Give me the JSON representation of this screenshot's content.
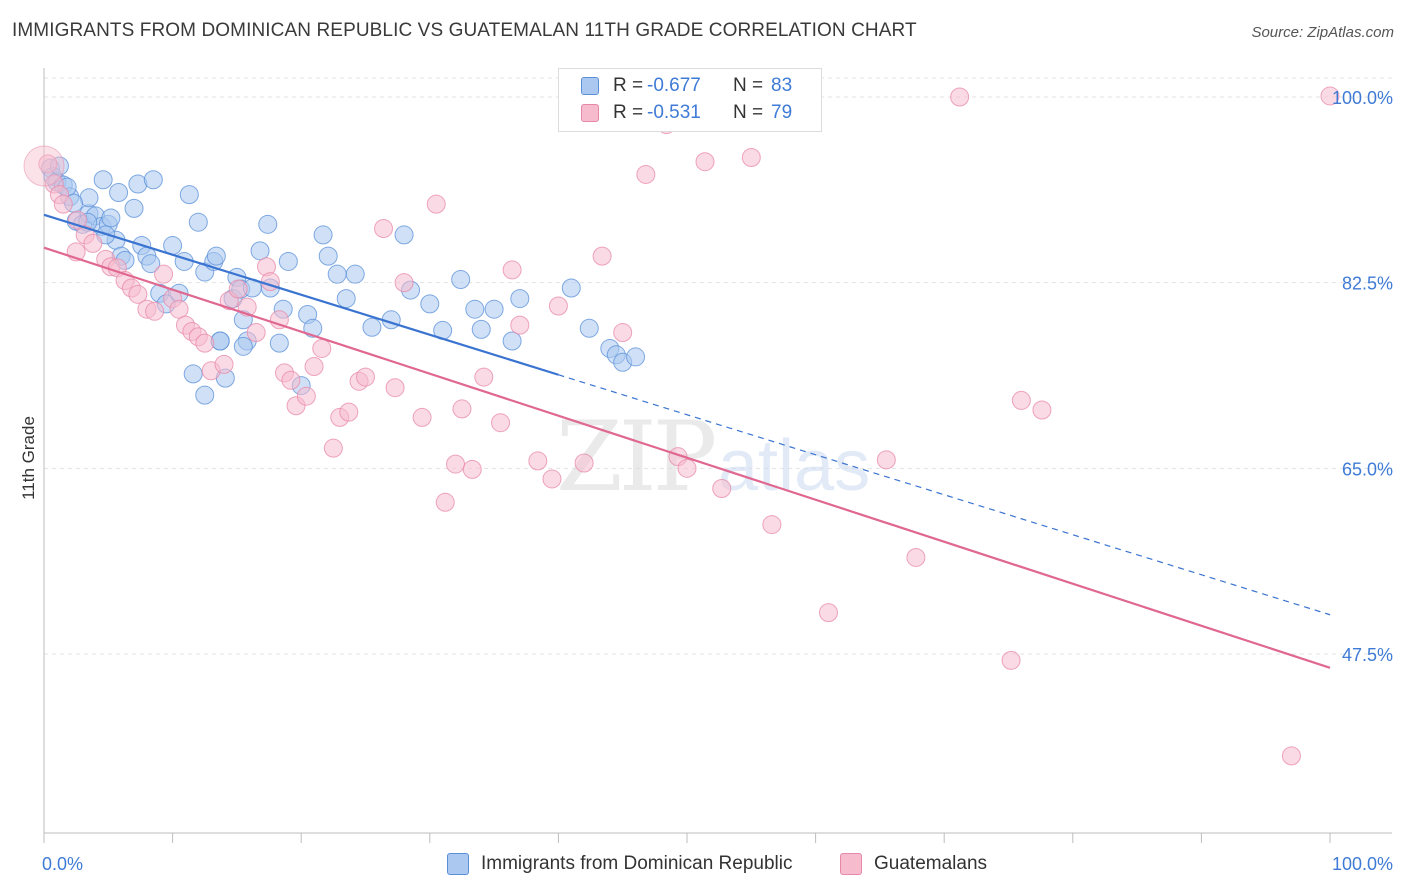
{
  "header": {
    "title": "IMMIGRANTS FROM DOMINICAN REPUBLIC VS GUATEMALAN 11TH GRADE CORRELATION CHART",
    "source": "Source: ZipAtlas.com"
  },
  "legend": {
    "rows": [
      {
        "r_label": "R =",
        "r_value": "-0.677",
        "n_label": "N =",
        "n_value": "83"
      },
      {
        "r_label": "R =",
        "r_value": "-0.531",
        "n_label": "N =",
        "n_value": "79"
      }
    ]
  },
  "bottom_legend": {
    "items": [
      {
        "label": "Immigrants from Dominican Republic"
      },
      {
        "label": "Guatemalans"
      }
    ]
  },
  "colors": {
    "series1_fill": "#aac8f0",
    "series1_stroke": "#5a8fd8",
    "series1_line": "#3a74d0",
    "series2_fill": "#f6bccd",
    "series2_stroke": "#e888a8",
    "series2_line": "#e06890",
    "axis_label": "#3f7bd6",
    "grid": "#e3e3e3",
    "watermark": "#d8d8d8"
  },
  "chart_data": {
    "type": "scatter",
    "title": "IMMIGRANTS FROM DOMINICAN REPUBLIC VS GUATEMALAN 11TH GRADE CORRELATION CHART",
    "xlabel": "",
    "ylabel": "11th Grade",
    "xlim": [
      0,
      100
    ],
    "ylim": [
      30.5,
      102.5
    ],
    "x_tick_labels": [
      "0.0%",
      "100.0%"
    ],
    "y_ticks": [
      47.5,
      65.0,
      82.5,
      100.0
    ],
    "y_tick_labels": [
      "47.5%",
      "65.0%",
      "82.5%",
      "100.0%"
    ],
    "grid": true,
    "watermark": {
      "bold": "ZIP",
      "light": "atlas"
    },
    "series": [
      {
        "name": "Immigrants from Dominican Republic",
        "R": -0.677,
        "N": 83,
        "trend": {
          "x0": 0,
          "y0": 88.9,
          "x1": 100,
          "y1": 51.2,
          "solid_until": 40
        },
        "points": [
          [
            0.5,
            93.3
          ],
          [
            0.7,
            92.5
          ],
          [
            1,
            92.0
          ],
          [
            1.5,
            91.7
          ],
          [
            2,
            90.6
          ],
          [
            2.5,
            88.3
          ],
          [
            3,
            88.0
          ],
          [
            3.5,
            89.0
          ],
          [
            4,
            88.8
          ],
          [
            4.5,
            87.8
          ],
          [
            5,
            88.0
          ],
          [
            3.5,
            90.5
          ],
          [
            4.6,
            92.2
          ],
          [
            5.2,
            88.6
          ],
          [
            5.6,
            86.5
          ],
          [
            6,
            85.0
          ],
          [
            6.3,
            84.6
          ],
          [
            7,
            89.5
          ],
          [
            7.3,
            91.8
          ],
          [
            7.6,
            86.0
          ],
          [
            8,
            85.0
          ],
          [
            8.3,
            84.3
          ],
          [
            9,
            81.5
          ],
          [
            9.5,
            80.5
          ],
          [
            10,
            86.0
          ],
          [
            10.5,
            81.5
          ],
          [
            10.9,
            84.5
          ],
          [
            11.3,
            90.8
          ],
          [
            12,
            88.2
          ],
          [
            12.5,
            83.5
          ],
          [
            13.2,
            84.5
          ],
          [
            13.7,
            77.0
          ],
          [
            14.1,
            73.5
          ],
          [
            14.7,
            81.0
          ],
          [
            15,
            83.0
          ],
          [
            15.3,
            81.9
          ],
          [
            15.8,
            77.0
          ],
          [
            16.2,
            82.0
          ],
          [
            16.8,
            85.5
          ],
          [
            17.4,
            88.0
          ],
          [
            17.6,
            82.0
          ],
          [
            18.3,
            76.8
          ],
          [
            18.6,
            80.0
          ],
          [
            19,
            84.5
          ],
          [
            20,
            72.8
          ],
          [
            20.5,
            79.5
          ],
          [
            20.9,
            78.2
          ],
          [
            21.7,
            87.0
          ],
          [
            22.1,
            85.0
          ],
          [
            22.8,
            83.3
          ],
          [
            23.5,
            81.0
          ],
          [
            24.2,
            83.3
          ],
          [
            25.5,
            78.3
          ],
          [
            27,
            79.0
          ],
          [
            28.5,
            81.8
          ],
          [
            28,
            87.0
          ],
          [
            30,
            80.5
          ],
          [
            31,
            78.0
          ],
          [
            32.4,
            82.8
          ],
          [
            33.5,
            80.0
          ],
          [
            34,
            78.1
          ],
          [
            35,
            80.0
          ],
          [
            36.4,
            77.0
          ],
          [
            37,
            81.0
          ],
          [
            41,
            82.0
          ],
          [
            42.4,
            78.2
          ],
          [
            44,
            76.3
          ],
          [
            44.5,
            75.7
          ],
          [
            45,
            75.0
          ],
          [
            46,
            75.5
          ],
          [
            11.6,
            73.9
          ],
          [
            12.5,
            71.9
          ],
          [
            15.5,
            76.5
          ],
          [
            1.2,
            93.5
          ],
          [
            1.8,
            91.5
          ],
          [
            2.3,
            90.0
          ],
          [
            3.4,
            88.2
          ],
          [
            4.8,
            87.0
          ],
          [
            8.5,
            92.2
          ],
          [
            5.8,
            91.0
          ],
          [
            13.7,
            77.0
          ],
          [
            15.5,
            79.0
          ],
          [
            13.4,
            85.0
          ]
        ]
      },
      {
        "name": "Guatemalans",
        "R": -0.531,
        "N": 79,
        "trend": {
          "x0": 0,
          "y0": 85.8,
          "x1": 100,
          "y1": 46.2
        },
        "points": [
          [
            0.3,
            93.7
          ],
          [
            0.8,
            91.8
          ],
          [
            1.2,
            90.8
          ],
          [
            1.5,
            89.9
          ],
          [
            2.6,
            88.4
          ],
          [
            3.2,
            87.0
          ],
          [
            3.8,
            86.2
          ],
          [
            2.5,
            85.4
          ],
          [
            4.8,
            84.7
          ],
          [
            5.2,
            84.0
          ],
          [
            5.7,
            83.9
          ],
          [
            6.3,
            82.7
          ],
          [
            6.8,
            82.0
          ],
          [
            7.3,
            81.4
          ],
          [
            8,
            80.0
          ],
          [
            8.6,
            79.8
          ],
          [
            9.3,
            83.3
          ],
          [
            10,
            81.0
          ],
          [
            10.5,
            80.0
          ],
          [
            11,
            78.5
          ],
          [
            11.5,
            77.9
          ],
          [
            12,
            77.4
          ],
          [
            12.5,
            76.8
          ],
          [
            13,
            74.2
          ],
          [
            14,
            74.8
          ],
          [
            14.4,
            80.8
          ],
          [
            15.1,
            81.9
          ],
          [
            15.8,
            80.2
          ],
          [
            16.5,
            77.8
          ],
          [
            17.3,
            84.0
          ],
          [
            17.6,
            82.6
          ],
          [
            18.3,
            79.0
          ],
          [
            18.7,
            74.0
          ],
          [
            19.2,
            73.3
          ],
          [
            19.6,
            70.9
          ],
          [
            20.4,
            71.8
          ],
          [
            21,
            74.6
          ],
          [
            21.6,
            76.3
          ],
          [
            22.5,
            66.9
          ],
          [
            23,
            69.8
          ],
          [
            23.7,
            70.3
          ],
          [
            24.5,
            73.2
          ],
          [
            25,
            73.6
          ],
          [
            26.4,
            87.6
          ],
          [
            27.3,
            72.6
          ],
          [
            28,
            82.5
          ],
          [
            29.4,
            69.8
          ],
          [
            30.5,
            89.9
          ],
          [
            31.2,
            61.8
          ],
          [
            32,
            65.4
          ],
          [
            32.5,
            70.6
          ],
          [
            33.3,
            64.9
          ],
          [
            34.2,
            73.6
          ],
          [
            35.5,
            69.3
          ],
          [
            36.4,
            83.7
          ],
          [
            37,
            78.5
          ],
          [
            38.4,
            65.7
          ],
          [
            39.5,
            64.0
          ],
          [
            40,
            80.3
          ],
          [
            42,
            65.5
          ],
          [
            43.4,
            85.0
          ],
          [
            45,
            77.8
          ],
          [
            46.8,
            92.7
          ],
          [
            48.4,
            97.4
          ],
          [
            49.3,
            66.1
          ],
          [
            50,
            65.0
          ],
          [
            51.4,
            93.9
          ],
          [
            52.7,
            63.1
          ],
          [
            55,
            94.3
          ],
          [
            56.6,
            59.7
          ],
          [
            61,
            51.4
          ],
          [
            65.5,
            65.8
          ],
          [
            67.8,
            56.6
          ],
          [
            71.2,
            100.0
          ],
          [
            75.2,
            46.9
          ],
          [
            76,
            71.4
          ],
          [
            77.6,
            70.5
          ],
          [
            100,
            100.1
          ],
          [
            97,
            37.9
          ]
        ]
      }
    ]
  }
}
